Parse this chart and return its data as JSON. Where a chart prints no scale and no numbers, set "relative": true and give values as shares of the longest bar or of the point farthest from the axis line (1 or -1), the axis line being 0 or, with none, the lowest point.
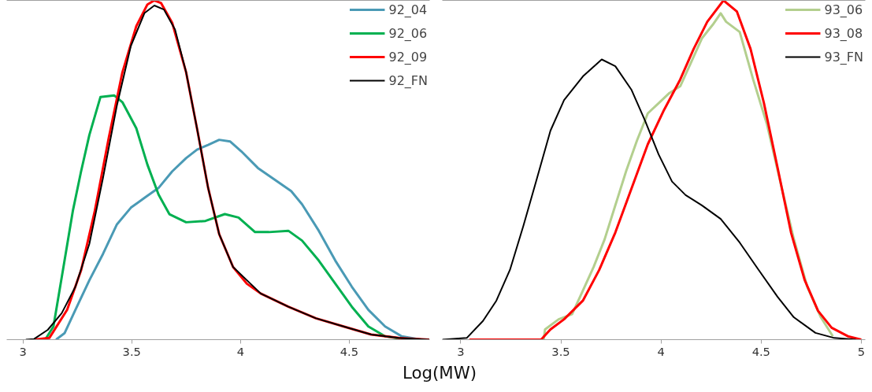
{
  "chart_data": [
    {
      "type": "line",
      "relative": true,
      "xlabel": "Log(MW)",
      "xlim": [
        2.925,
        4.87
      ],
      "xticks": [
        3,
        3.5,
        4,
        4.5
      ],
      "tick_labels": "x",
      "grid": false,
      "legend": "top right",
      "marker": "none",
      "line_style": "solid",
      "series": [
        {
          "name": "92_04",
          "color": "#4a9ab5",
          "x": [
            3.152,
            3.191,
            3.241,
            3.305,
            3.368,
            3.432,
            3.496,
            3.559,
            3.623,
            3.686,
            3.75,
            3.8,
            3.851,
            3.902,
            3.953,
            4.004,
            4.08,
            4.156,
            4.233,
            4.283,
            4.36,
            4.436,
            4.512,
            4.588,
            4.665,
            4.741,
            4.83
          ],
          "values": [
            0,
            0.019,
            0.088,
            0.175,
            0.253,
            0.34,
            0.389,
            0.418,
            0.447,
            0.496,
            0.535,
            0.56,
            0.574,
            0.589,
            0.584,
            0.555,
            0.506,
            0.472,
            0.438,
            0.399,
            0.321,
            0.233,
            0.156,
            0.088,
            0.039,
            0.01,
            0
          ]
        },
        {
          "name": "92_06",
          "color": "#00b050",
          "x": [
            3.102,
            3.14,
            3.191,
            3.229,
            3.267,
            3.305,
            3.356,
            3.419,
            3.457,
            3.521,
            3.572,
            3.623,
            3.673,
            3.75,
            3.839,
            3.928,
            3.991,
            4.067,
            4.131,
            4.22,
            4.283,
            4.36,
            4.436,
            4.512,
            4.588,
            4.665,
            4.766
          ],
          "values": [
            0,
            0.039,
            0.233,
            0.379,
            0.496,
            0.603,
            0.715,
            0.72,
            0.7,
            0.623,
            0.516,
            0.428,
            0.37,
            0.346,
            0.35,
            0.37,
            0.36,
            0.317,
            0.317,
            0.321,
            0.292,
            0.233,
            0.165,
            0.097,
            0.039,
            0.01,
            0
          ]
        },
        {
          "name": "92_09",
          "color": "#ff0000",
          "x": [
            3.051,
            3.121,
            3.203,
            3.267,
            3.33,
            3.394,
            3.457,
            3.521,
            3.572,
            3.604,
            3.635,
            3.686,
            3.75,
            3.8,
            3.851,
            3.902,
            3.966,
            4.029,
            4.093,
            4.22,
            4.347,
            4.474,
            4.601,
            4.728,
            4.868
          ],
          "values": [
            0,
            0.005,
            0.088,
            0.204,
            0.379,
            0.594,
            0.788,
            0.924,
            0.988,
            1,
            0.992,
            0.934,
            0.788,
            0.623,
            0.448,
            0.311,
            0.214,
            0.165,
            0.136,
            0.097,
            0.063,
            0.039,
            0.015,
            0.005,
            0
          ]
        },
        {
          "name": "92_FN",
          "color": "#000000",
          "x": [
            3.013,
            3.051,
            3.114,
            3.178,
            3.241,
            3.305,
            3.368,
            3.432,
            3.496,
            3.559,
            3.604,
            3.648,
            3.699,
            3.75,
            3.8,
            3.851,
            3.902,
            3.966,
            4.093,
            4.22,
            4.347,
            4.474,
            4.601,
            4.728,
            4.868
          ],
          "values": [
            0,
            0.002,
            0.029,
            0.078,
            0.156,
            0.282,
            0.477,
            0.691,
            0.866,
            0.963,
            0.985,
            0.973,
            0.914,
            0.788,
            0.623,
            0.448,
            0.311,
            0.214,
            0.136,
            0.097,
            0.063,
            0.039,
            0.015,
            0.005,
            0
          ]
        }
      ]
    },
    {
      "type": "line",
      "relative": true,
      "xlim": [
        2.908,
        5.02
      ],
      "xticks": [
        3,
        3.5,
        4,
        4.5,
        5
      ],
      "tick_labels": "x",
      "grid": false,
      "legend": "top right",
      "marker": "none",
      "line_style": "solid",
      "series": [
        {
          "name": "93_06",
          "color": "#b3cf8e",
          "x": [
            3.414,
            3.421,
            3.489,
            3.556,
            3.61,
            3.664,
            3.718,
            3.772,
            3.826,
            3.88,
            3.934,
            3.988,
            4.042,
            4.096,
            4.15,
            4.204,
            4.258,
            4.298,
            4.325,
            4.393,
            4.46,
            4.528,
            4.595,
            4.663,
            4.73,
            4.798,
            4.858
          ],
          "values": [
            0,
            0.03,
            0.06,
            0.075,
            0.145,
            0.215,
            0.295,
            0.396,
            0.497,
            0.587,
            0.667,
            0.697,
            0.727,
            0.747,
            0.817,
            0.888,
            0.928,
            0.962,
            0.937,
            0.907,
            0.767,
            0.637,
            0.467,
            0.297,
            0.156,
            0.066,
            0.01
          ]
        },
        {
          "name": "93_08",
          "color": "#ff0000",
          "x": [
            3.043,
            3.401,
            3.448,
            3.516,
            3.61,
            3.691,
            3.772,
            3.853,
            3.934,
            4.015,
            4.096,
            4.163,
            4.231,
            4.312,
            4.379,
            4.447,
            4.514,
            4.582,
            4.649,
            4.717,
            4.784,
            4.852,
            4.933,
            5.0
          ],
          "values": [
            0,
            0,
            0.03,
            0.06,
            0.115,
            0.205,
            0.316,
            0.446,
            0.576,
            0.677,
            0.767,
            0.857,
            0.937,
            1,
            0.967,
            0.857,
            0.697,
            0.507,
            0.316,
            0.176,
            0.085,
            0.035,
            0.01,
            0
          ]
        },
        {
          "name": "93_FN",
          "color": "#000000",
          "x": [
            2.908,
            3.03,
            3.111,
            3.178,
            3.246,
            3.313,
            3.381,
            3.448,
            3.516,
            3.61,
            3.704,
            3.772,
            3.853,
            3.92,
            3.988,
            4.055,
            4.123,
            4.204,
            4.298,
            4.393,
            4.487,
            4.582,
            4.663,
            4.771,
            4.865,
            4.973
          ],
          "values": [
            0,
            0.005,
            0.055,
            0.115,
            0.206,
            0.336,
            0.476,
            0.616,
            0.706,
            0.776,
            0.826,
            0.806,
            0.736,
            0.646,
            0.546,
            0.466,
            0.426,
            0.396,
            0.356,
            0.286,
            0.206,
            0.126,
            0.066,
            0.02,
            0.005,
            0
          ]
        }
      ]
    }
  ]
}
